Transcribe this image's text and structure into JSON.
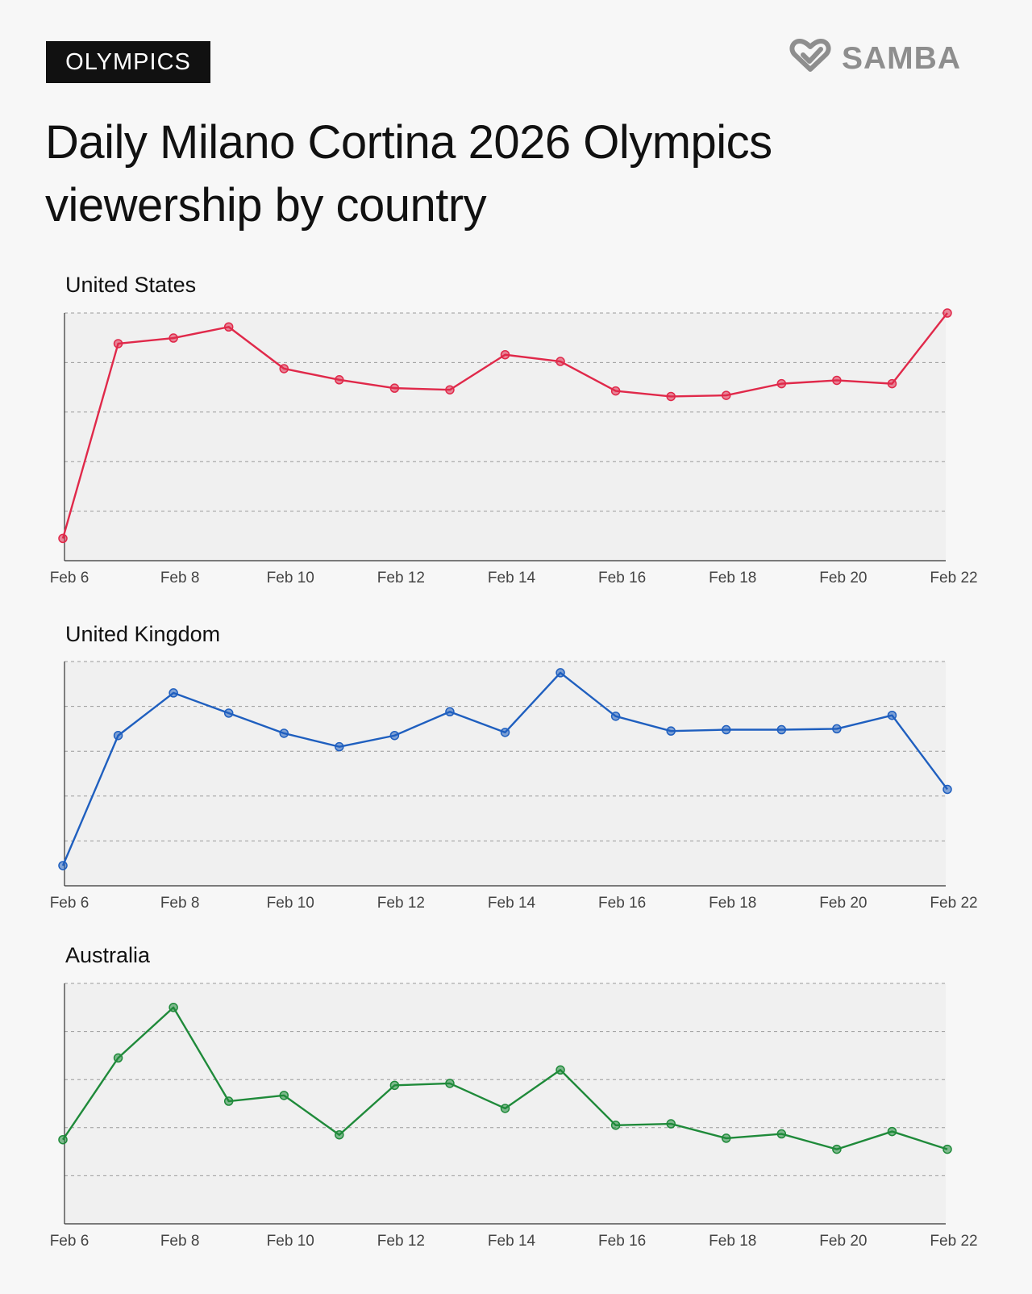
{
  "tag": "OLYMPICS",
  "brand": {
    "name": "SAMBA",
    "icon": "samba-heart-check-icon",
    "color": "#8e8e8e"
  },
  "title": "Daily Milano Cortina 2026 Olympics viewership by country",
  "chart_data": [
    {
      "type": "line",
      "title": "United States",
      "color": "#e0294a",
      "x": [
        "Feb 6",
        "Feb 7",
        "Feb 8",
        "Feb 9",
        "Feb 10",
        "Feb 11",
        "Feb 12",
        "Feb 13",
        "Feb 14",
        "Feb 15",
        "Feb 16",
        "Feb 17",
        "Feb 18",
        "Feb 19",
        "Feb 20",
        "Feb 21",
        "Feb 22"
      ],
      "x_tick_labels": [
        "Feb 6",
        "Feb 8",
        "Feb 10",
        "Feb 12",
        "Feb 14",
        "Feb 16",
        "Feb 18",
        "Feb 20",
        "Feb 22"
      ],
      "values": [
        0.4,
        3.9,
        4.0,
        4.2,
        3.45,
        3.25,
        3.1,
        3.07,
        3.7,
        3.58,
        3.05,
        2.95,
        2.97,
        3.18,
        3.24,
        3.18,
        4.45
      ],
      "ylim": [
        0,
        4.45
      ],
      "y_tick_labels": [],
      "grid": true
    },
    {
      "type": "line",
      "title": "United Kingdom",
      "color": "#1f5fbf",
      "x": [
        "Feb 6",
        "Feb 7",
        "Feb 8",
        "Feb 9",
        "Feb 10",
        "Feb 11",
        "Feb 12",
        "Feb 13",
        "Feb 14",
        "Feb 15",
        "Feb 16",
        "Feb 17",
        "Feb 18",
        "Feb 19",
        "Feb 20",
        "Feb 21",
        "Feb 22"
      ],
      "x_tick_labels": [
        "Feb 6",
        "Feb 8",
        "Feb 10",
        "Feb 12",
        "Feb 14",
        "Feb 16",
        "Feb 18",
        "Feb 20",
        "Feb 22"
      ],
      "values": [
        0.45,
        3.35,
        4.3,
        3.85,
        3.4,
        3.1,
        3.35,
        3.88,
        3.42,
        4.75,
        3.78,
        3.45,
        3.48,
        3.48,
        3.5,
        3.8,
        2.15
      ],
      "ylim": [
        0,
        5.0
      ],
      "y_tick_labels": [],
      "grid": true
    },
    {
      "type": "line",
      "title": "Australia",
      "color": "#1f8a3a",
      "x": [
        "Feb 6",
        "Feb 7",
        "Feb 8",
        "Feb 9",
        "Feb 10",
        "Feb 11",
        "Feb 12",
        "Feb 13",
        "Feb 14",
        "Feb 15",
        "Feb 16",
        "Feb 17",
        "Feb 18",
        "Feb 19",
        "Feb 20",
        "Feb 21",
        "Feb 22"
      ],
      "x_tick_labels": [
        "Feb 6",
        "Feb 8",
        "Feb 10",
        "Feb 12",
        "Feb 14",
        "Feb 16",
        "Feb 18",
        "Feb 20",
        "Feb 22"
      ],
      "values": [
        1.75,
        3.45,
        4.5,
        2.55,
        2.67,
        1.85,
        2.88,
        2.92,
        2.4,
        3.2,
        2.05,
        2.08,
        1.78,
        1.87,
        1.55,
        1.92,
        1.55
      ],
      "ylim": [
        0,
        5.0
      ],
      "y_tick_labels": [],
      "grid": true
    }
  ]
}
